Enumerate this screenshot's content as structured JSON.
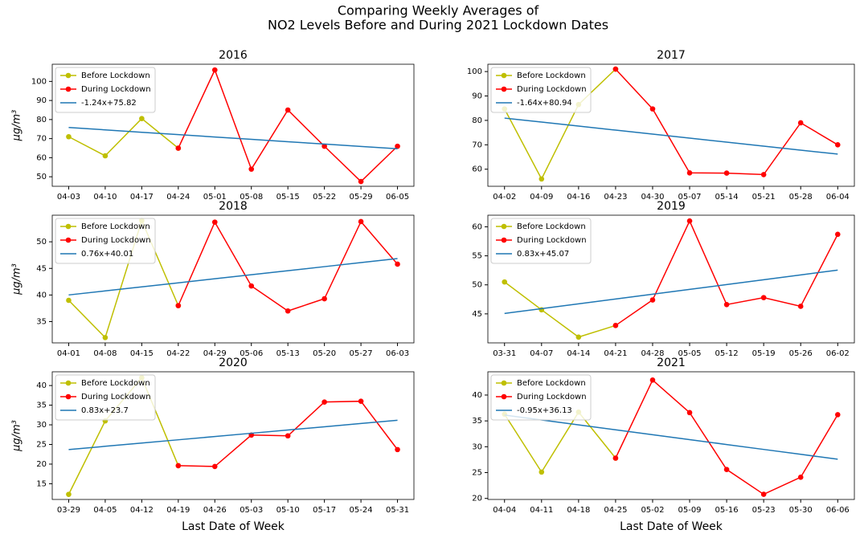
{
  "title": [
    "Comparing Weekly Averages of",
    "NO2 Levels Before and During 2021 Lockdown Dates"
  ],
  "chart_data": [
    {
      "type": "line",
      "title": "2016",
      "ylabel": "μg/m³",
      "legend": "upper left",
      "categories": [
        "04-03",
        "04-10",
        "04-17",
        "04-24",
        "05-01",
        "05-08",
        "05-15",
        "05-22",
        "05-29",
        "06-05"
      ],
      "ylim": [
        45,
        109
      ],
      "yticks": [
        50,
        60,
        70,
        80,
        90,
        100
      ],
      "series": [
        {
          "name": "Before Lockdown",
          "color": "#bfbf00",
          "marker": "o",
          "values": [
            71,
            61,
            80.5,
            65,
            null,
            null,
            null,
            null,
            null,
            null
          ]
        },
        {
          "name": "During Lockdown",
          "color": "#ff0000",
          "marker": "o",
          "values": [
            null,
            null,
            null,
            65,
            106,
            54,
            85,
            66,
            47.5,
            66
          ]
        },
        {
          "name": "-1.24x+75.82",
          "color": "#1f77b4",
          "values": [
            75.82,
            74.58,
            73.34,
            72.1,
            70.86,
            69.62,
            68.38,
            67.14,
            65.9,
            64.66
          ]
        }
      ]
    },
    {
      "type": "line",
      "title": "2017",
      "legend": "upper left",
      "categories": [
        "04-02",
        "04-09",
        "04-16",
        "04-23",
        "04-30",
        "05-07",
        "05-14",
        "05-21",
        "05-28",
        "06-04"
      ],
      "ylim": [
        53,
        103
      ],
      "yticks": [
        60,
        70,
        80,
        90,
        100
      ],
      "series": [
        {
          "name": "Before Lockdown",
          "color": "#bfbf00",
          "marker": "o",
          "values": [
            84.7,
            56,
            86.5,
            101,
            null,
            null,
            null,
            null,
            null,
            null
          ]
        },
        {
          "name": "During Lockdown",
          "color": "#ff0000",
          "marker": "o",
          "values": [
            null,
            null,
            null,
            101,
            84.7,
            58.5,
            58.4,
            57.8,
            79,
            70
          ]
        },
        {
          "name": "-1.64x+80.94",
          "color": "#1f77b4",
          "values": [
            80.94,
            79.3,
            77.66,
            76.02,
            74.38,
            72.74,
            71.1,
            69.46,
            67.82,
            66.18
          ]
        }
      ]
    },
    {
      "type": "line",
      "title": "2018",
      "ylabel": "μg/m³",
      "legend": "upper left",
      "categories": [
        "04-01",
        "04-08",
        "04-15",
        "04-22",
        "04-29",
        "05-06",
        "05-13",
        "05-20",
        "05-27",
        "06-03"
      ],
      "ylim": [
        31,
        55
      ],
      "yticks": [
        35,
        40,
        45,
        50
      ],
      "series": [
        {
          "name": "Before Lockdown",
          "color": "#bfbf00",
          "marker": "o",
          "values": [
            39,
            32,
            54,
            38,
            null,
            null,
            null,
            null,
            null,
            null
          ]
        },
        {
          "name": "During Lockdown",
          "color": "#ff0000",
          "marker": "o",
          "values": [
            null,
            null,
            null,
            38,
            53.7,
            41.7,
            37,
            39.3,
            53.8,
            45.8
          ]
        },
        {
          "name": "0.76x+40.01",
          "color": "#1f77b4",
          "values": [
            40.01,
            40.77,
            41.53,
            42.29,
            43.05,
            43.81,
            44.57,
            45.33,
            46.09,
            46.85
          ]
        }
      ]
    },
    {
      "type": "line",
      "title": "2019",
      "legend": "upper left",
      "categories": [
        "03-31",
        "04-07",
        "04-14",
        "04-21",
        "04-28",
        "05-05",
        "05-12",
        "05-19",
        "05-26",
        "06-02"
      ],
      "ylim": [
        40,
        62
      ],
      "yticks": [
        45,
        50,
        55,
        60
      ],
      "series": [
        {
          "name": "Before Lockdown",
          "color": "#bfbf00",
          "marker": "o",
          "values": [
            50.5,
            45.7,
            41,
            43,
            null,
            null,
            null,
            null,
            null,
            null
          ]
        },
        {
          "name": "During Lockdown",
          "color": "#ff0000",
          "marker": "o",
          "values": [
            null,
            null,
            null,
            43,
            47.4,
            61,
            46.6,
            47.8,
            46.3,
            58.7
          ]
        },
        {
          "name": "0.83x+45.07",
          "color": "#1f77b4",
          "values": [
            45.07,
            45.9,
            46.73,
            47.56,
            48.39,
            49.22,
            50.05,
            50.88,
            51.71,
            52.54
          ]
        }
      ]
    },
    {
      "type": "line",
      "title": "2020",
      "ylabel": "μg/m³",
      "xlabel": "Last Date of Week",
      "legend": "upper left",
      "categories": [
        "03-29",
        "04-05",
        "04-12",
        "04-19",
        "04-26",
        "05-03",
        "05-10",
        "05-17",
        "05-24",
        "05-31"
      ],
      "ylim": [
        11,
        43.5
      ],
      "yticks": [
        15,
        20,
        25,
        30,
        35,
        40
      ],
      "series": [
        {
          "name": "Before Lockdown",
          "color": "#bfbf00",
          "marker": "o",
          "values": [
            12.3,
            31,
            42,
            19.6,
            null,
            null,
            null,
            null,
            null,
            null
          ]
        },
        {
          "name": "During Lockdown",
          "color": "#ff0000",
          "marker": "o",
          "values": [
            null,
            null,
            null,
            19.6,
            19.4,
            27.4,
            27.2,
            35.8,
            36,
            23.7
          ]
        },
        {
          "name": "0.83x+23.7",
          "color": "#1f77b4",
          "values": [
            23.7,
            24.53,
            25.36,
            26.19,
            27.02,
            27.85,
            28.68,
            29.51,
            30.34,
            31.17
          ]
        }
      ]
    },
    {
      "type": "line",
      "title": "2021",
      "xlabel": "Last Date of Week",
      "legend": "upper left",
      "categories": [
        "04-04",
        "04-11",
        "04-18",
        "04-25",
        "05-02",
        "05-09",
        "05-16",
        "05-23",
        "05-30",
        "06-06"
      ],
      "ylim": [
        19.8,
        44.5
      ],
      "yticks": [
        20,
        25,
        30,
        35,
        40
      ],
      "series": [
        {
          "name": "Before Lockdown",
          "color": "#bfbf00",
          "marker": "o",
          "values": [
            36.3,
            25.1,
            36.7,
            27.8,
            null,
            null,
            null,
            null,
            null,
            null
          ]
        },
        {
          "name": "During Lockdown",
          "color": "#ff0000",
          "marker": "o",
          "values": [
            null,
            null,
            null,
            27.8,
            42.9,
            36.6,
            25.6,
            20.8,
            24.1,
            36.2
          ]
        },
        {
          "name": "-0.95x+36.13",
          "color": "#1f77b4",
          "values": [
            36.13,
            35.18,
            34.23,
            33.28,
            32.33,
            31.38,
            30.43,
            29.48,
            28.53,
            27.58
          ]
        }
      ]
    }
  ]
}
